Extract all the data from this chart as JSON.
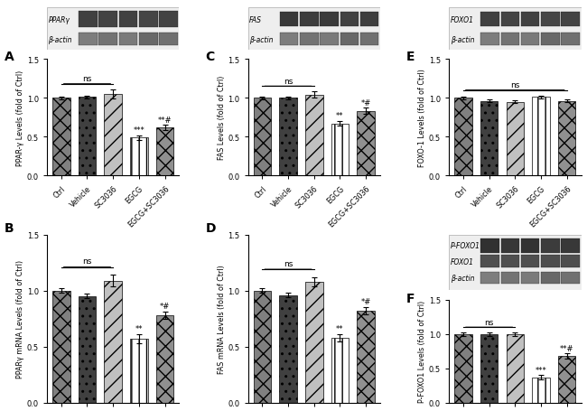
{
  "categories": [
    "Ctrl",
    "Vehicle",
    "SC3036",
    "EGCG",
    "EGCG+SC3036"
  ],
  "panels": {
    "A": {
      "label": "A",
      "ylabel": "PPAR-γ Levels (fold of Ctrl)",
      "values": [
        1.0,
        1.01,
        1.05,
        0.49,
        0.62
      ],
      "errors": [
        0.02,
        0.02,
        0.06,
        0.03,
        0.03
      ],
      "sig_ns_range": [
        0,
        2
      ],
      "sig_labels": {
        "3": "***",
        "4": "**#"
      },
      "has_blot": true,
      "blot_rows": 2
    },
    "B": {
      "label": "B",
      "ylabel": "PPARγ mRNA Levels (fold of Ctrl)",
      "values": [
        1.0,
        0.95,
        1.09,
        0.57,
        0.78
      ],
      "errors": [
        0.02,
        0.02,
        0.05,
        0.04,
        0.03
      ],
      "sig_ns_range": [
        0,
        2
      ],
      "sig_labels": {
        "3": "**",
        "4": "*#"
      },
      "has_blot": false,
      "blot_rows": 0
    },
    "C": {
      "label": "C",
      "ylabel": "FAS Levels (fold of Ctrl)",
      "values": [
        1.0,
        1.0,
        1.04,
        0.67,
        0.83
      ],
      "errors": [
        0.02,
        0.02,
        0.04,
        0.03,
        0.04
      ],
      "sig_ns_range": [
        0,
        2
      ],
      "sig_labels": {
        "3": "**",
        "4": "*#"
      },
      "has_blot": true,
      "blot_rows": 2
    },
    "D": {
      "label": "D",
      "ylabel": "FAS mRNA Levels (fold of Ctrl)",
      "values": [
        1.0,
        0.96,
        1.08,
        0.58,
        0.82
      ],
      "errors": [
        0.02,
        0.02,
        0.04,
        0.03,
        0.03
      ],
      "sig_ns_range": [
        0,
        2
      ],
      "sig_labels": {
        "3": "**",
        "4": "*#"
      },
      "has_blot": false,
      "blot_rows": 0
    },
    "E": {
      "label": "E",
      "ylabel": "FOXO-1 Levels (fold of Ctrl)",
      "values": [
        1.0,
        0.96,
        0.95,
        1.01,
        0.96
      ],
      "errors": [
        0.02,
        0.02,
        0.02,
        0.02,
        0.02
      ],
      "sig_ns_range": [
        0,
        4
      ],
      "sig_labels": {},
      "has_blot": true,
      "blot_rows": 2
    },
    "F": {
      "label": "F",
      "ylabel": "P-FOXO1 Levels (fold of Ctrl)",
      "values": [
        1.0,
        1.0,
        1.0,
        0.37,
        0.68
      ],
      "errors": [
        0.03,
        0.03,
        0.03,
        0.03,
        0.04
      ],
      "sig_ns_range": [
        0,
        2
      ],
      "sig_labels": {
        "3": "***",
        "4": "**#"
      },
      "has_blot": true,
      "blot_rows": 3
    }
  },
  "bar_styles": [
    {
      "facecolor": "#808080",
      "hatch": "xx",
      "edgecolor": "black",
      "lw": 0.5
    },
    {
      "facecolor": "#404040",
      "hatch": "..",
      "edgecolor": "black",
      "lw": 0.5
    },
    {
      "facecolor": "#c0c0c0",
      "hatch": "//",
      "edgecolor": "black",
      "lw": 0.5
    },
    {
      "facecolor": "#ffffff",
      "hatch": "||",
      "edgecolor": "black",
      "lw": 0.5
    },
    {
      "facecolor": "#909090",
      "hatch": "xx",
      "edgecolor": "black",
      "lw": 0.5
    }
  ],
  "ylim": [
    0.0,
    1.5
  ],
  "yticks": [
    0.0,
    0.5,
    1.0,
    1.5
  ]
}
